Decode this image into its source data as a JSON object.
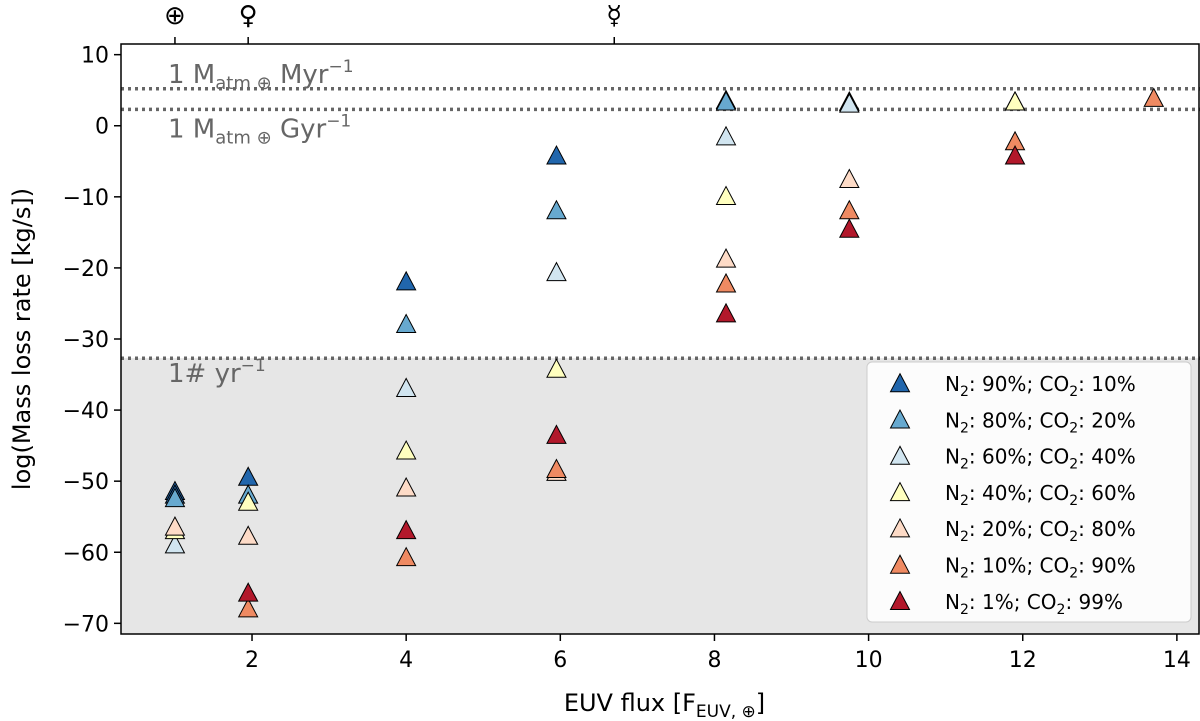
{
  "chart_data": {
    "type": "scatter",
    "marker": "triangle",
    "xlabel": "EUV flux [F",
    "xlabel_sub": "EUV, ⊕",
    "xlabel_end": "]",
    "ylabel": "log(Mass loss rate [kg/s])",
    "xlim": [
      0.3,
      14.3
    ],
    "ylim": [
      -71.5,
      11.5
    ],
    "xticks": [
      2,
      4,
      6,
      8,
      10,
      12,
      14
    ],
    "yticks": [
      10,
      0,
      -10,
      -20,
      -30,
      -40,
      -50,
      -60,
      -70
    ],
    "ytick_labels": [
      "10",
      "0",
      "−10",
      "−20",
      "−30",
      "−40",
      "−50",
      "−60",
      "−70"
    ],
    "shaded_region": {
      "y_from": -71.5,
      "y_to": -32.7,
      "color": "#e6e6e6"
    },
    "reference_lines": [
      {
        "y": 5.2,
        "label_main": "1 M",
        "label_sub": "atm ⊕",
        "label_end": " Myr",
        "label_sup": "−1"
      },
      {
        "y": 2.3,
        "label_main": "1 M",
        "label_sub": "atm ⊕",
        "label_end": " Gyr",
        "label_sup": "−1"
      },
      {
        "y": -32.7,
        "label_main": "1# yr",
        "label_sub": "",
        "label_end": "",
        "label_sup": "−1"
      }
    ],
    "top_markers": [
      {
        "x": 1.0,
        "symbol": "⊕"
      },
      {
        "x": 1.95,
        "symbol": "♀"
      },
      {
        "x": 6.7,
        "symbol": "☿"
      }
    ],
    "series": [
      {
        "name": "N₂: 90%; CO₂: 10%",
        "color": "#2166ac",
        "points": [
          [
            1.0,
            -51.5
          ],
          [
            1.0,
            -52.0
          ],
          [
            1.95,
            -49.5
          ],
          [
            4.0,
            -22.0
          ],
          [
            5.95,
            -4.3
          ],
          [
            8.15,
            3.5
          ],
          [
            9.75,
            3.3
          ],
          [
            11.9,
            3.3
          ]
        ]
      },
      {
        "name": "N₂: 80%; CO₂: 20%",
        "color": "#67a9cf",
        "points": [
          [
            1.0,
            -52.5
          ],
          [
            1.95,
            -52.0
          ],
          [
            4.0,
            -28.0
          ],
          [
            5.95,
            -12.0
          ],
          [
            8.15,
            3.3
          ],
          [
            9.75,
            3.2
          ]
        ]
      },
      {
        "name": "N₂: 60%; CO₂: 40%",
        "color": "#d1e5f0",
        "points": [
          [
            1.0,
            -59.0
          ],
          [
            4.0,
            -37.0
          ],
          [
            5.95,
            -20.7
          ],
          [
            8.15,
            -1.6
          ],
          [
            9.75,
            3.0
          ]
        ]
      },
      {
        "name": "N₂: 40%; CO₂: 60%",
        "color": "#ffffbf",
        "points": [
          [
            1.0,
            -57.0
          ],
          [
            1.95,
            -53.0
          ],
          [
            4.0,
            -45.8
          ],
          [
            5.95,
            -34.3
          ],
          [
            8.15,
            -10.0
          ],
          [
            11.9,
            3.3
          ]
        ]
      },
      {
        "name": "N₂: 20%; CO₂: 80%",
        "color": "#fddbc7",
        "points": [
          [
            1.0,
            -56.5
          ],
          [
            1.95,
            -57.8
          ],
          [
            4.0,
            -51.0
          ],
          [
            5.95,
            -48.8
          ],
          [
            8.15,
            -18.8
          ],
          [
            9.75,
            -7.6
          ]
        ]
      },
      {
        "name": "N₂: 10%; CO₂: 90%",
        "color": "#ef8a62",
        "points": [
          [
            1.95,
            -68.0
          ],
          [
            4.0,
            -60.8
          ],
          [
            5.95,
            -48.4
          ],
          [
            8.15,
            -22.3
          ],
          [
            9.75,
            -12.0
          ],
          [
            11.9,
            -2.3
          ],
          [
            13.7,
            3.8
          ]
        ]
      },
      {
        "name": "N₂:  1%; CO₂: 99%",
        "color": "#b2182b",
        "points": [
          [
            1.95,
            -65.8
          ],
          [
            4.0,
            -57.0
          ],
          [
            5.95,
            -43.6
          ],
          [
            8.15,
            -26.5
          ],
          [
            9.75,
            -14.6
          ],
          [
            11.9,
            -4.3
          ]
        ]
      }
    ],
    "legend": {
      "placement": "bottom-right",
      "entries": [
        {
          "a": "N",
          "a_sub": "2",
          "b": ": 90%; CO",
          "b_sub": "2",
          "c": ": 10%"
        },
        {
          "a": "N",
          "a_sub": "2",
          "b": ": 80%; CO",
          "b_sub": "2",
          "c": ": 20%"
        },
        {
          "a": "N",
          "a_sub": "2",
          "b": ": 60%; CO",
          "b_sub": "2",
          "c": ": 40%"
        },
        {
          "a": "N",
          "a_sub": "2",
          "b": ": 40%; CO",
          "b_sub": "2",
          "c": ": 60%"
        },
        {
          "a": "N",
          "a_sub": "2",
          "b": ": 20%; CO",
          "b_sub": "2",
          "c": ": 80%"
        },
        {
          "a": "N",
          "a_sub": "2",
          "b": ": 10%; CO",
          "b_sub": "2",
          "c": ": 90%"
        },
        {
          "a": "N",
          "a_sub": "2",
          "b": ":  1%; CO",
          "b_sub": "2",
          "c": ": 99%"
        }
      ]
    },
    "grid": false
  }
}
